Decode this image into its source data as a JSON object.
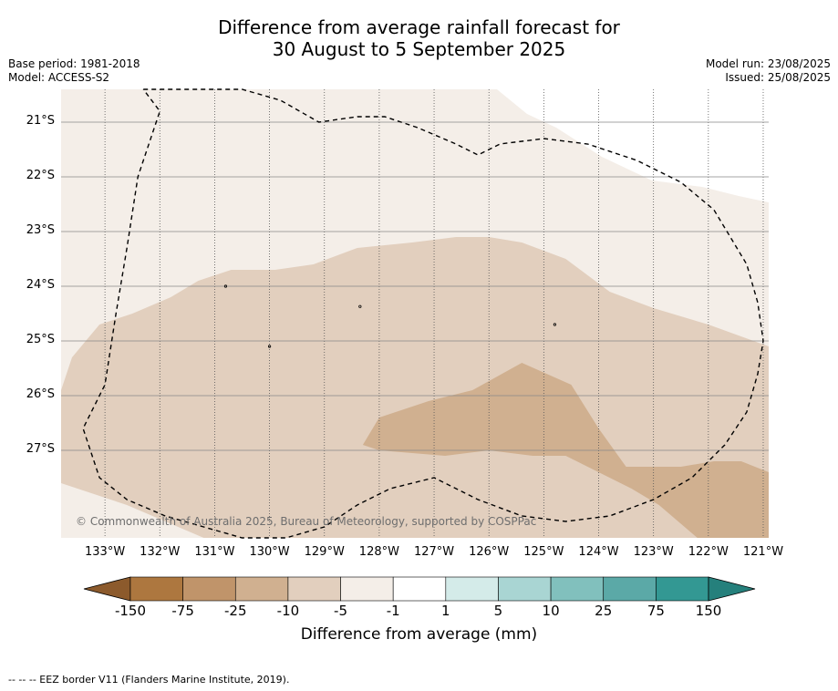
{
  "title": {
    "line1": "Difference from average rainfall forecast for",
    "line2": "30 August to 5 September 2025"
  },
  "meta": {
    "base_period": "Base period: 1981-2018",
    "model": "Model: ACCESS-S2",
    "model_run": "Model run: 23/08/2025",
    "issued": "Issued: 25/08/2025"
  },
  "map": {
    "lon_range": [
      -133.8,
      -120.9
    ],
    "lat_range": [
      -28.6,
      -20.4
    ],
    "lat_labels": [
      {
        "value": -21,
        "label": "21°S"
      },
      {
        "value": -22,
        "label": "22°S"
      },
      {
        "value": -23,
        "label": "23°S"
      },
      {
        "value": -24,
        "label": "24°S"
      },
      {
        "value": -25,
        "label": "25°S"
      },
      {
        "value": -26,
        "label": "26°S"
      },
      {
        "value": -27,
        "label": "27°S"
      }
    ],
    "lon_labels": [
      {
        "value": -133,
        "label": "133°W"
      },
      {
        "value": -132,
        "label": "132°W"
      },
      {
        "value": -131,
        "label": "131°W"
      },
      {
        "value": -130,
        "label": "130°W"
      },
      {
        "value": -129,
        "label": "129°W"
      },
      {
        "value": -128,
        "label": "128°W"
      },
      {
        "value": -127,
        "label": "127°W"
      },
      {
        "value": -126,
        "label": "126°W"
      },
      {
        "value": -125,
        "label": "125°W"
      },
      {
        "value": -124,
        "label": "124°W"
      },
      {
        "value": -123,
        "label": "123°W"
      },
      {
        "value": -122,
        "label": "122°W"
      },
      {
        "value": -121,
        "label": "121°W"
      }
    ],
    "copyright": "© Commonwealth of Australia 2025, Bureau of Meteorology, supported by COSPPac",
    "base_color": "#f4eee8",
    "regions": [
      {
        "range": "-10 to -5",
        "color": "#e2cfbe",
        "outline": [
          [
            -133.8,
            -25.9
          ],
          [
            -133.6,
            -25.3
          ],
          [
            -133.1,
            -24.7
          ],
          [
            -132.5,
            -24.5
          ],
          [
            -131.8,
            -24.2
          ],
          [
            -131.3,
            -23.9
          ],
          [
            -130.7,
            -23.7
          ],
          [
            -129.9,
            -23.7
          ],
          [
            -129.2,
            -23.6
          ],
          [
            -128.4,
            -23.3
          ],
          [
            -127.4,
            -23.2
          ],
          [
            -126.6,
            -23.1
          ],
          [
            -126.0,
            -23.1
          ],
          [
            -125.4,
            -23.2
          ],
          [
            -124.6,
            -23.5
          ],
          [
            -123.8,
            -24.1
          ],
          [
            -123.0,
            -24.4
          ],
          [
            -122.0,
            -24.7
          ],
          [
            -120.9,
            -25.1
          ],
          [
            -120.9,
            -28.6
          ],
          [
            -131.2,
            -28.6
          ],
          [
            -132.6,
            -28.0
          ],
          [
            -133.8,
            -27.6
          ]
        ]
      },
      {
        "range": "-25 to -10",
        "color": "#d0b090",
        "outline": [
          [
            -128.0,
            -26.4
          ],
          [
            -127.1,
            -26.1
          ],
          [
            -126.3,
            -25.9
          ],
          [
            -125.4,
            -25.4
          ],
          [
            -124.5,
            -25.8
          ],
          [
            -124.0,
            -26.6
          ],
          [
            -123.5,
            -27.3
          ],
          [
            -122.5,
            -27.3
          ],
          [
            -121.9,
            -27.2
          ],
          [
            -121.4,
            -27.2
          ],
          [
            -120.9,
            -27.4
          ],
          [
            -120.9,
            -28.6
          ],
          [
            -122.2,
            -28.6
          ],
          [
            -122.9,
            -28.0
          ],
          [
            -123.4,
            -27.7
          ],
          [
            -124.0,
            -27.4
          ],
          [
            -124.6,
            -27.1
          ],
          [
            -125.2,
            -27.1
          ],
          [
            -126.0,
            -27.0
          ],
          [
            -126.8,
            -27.1
          ],
          [
            -128.0,
            -27.0
          ],
          [
            -128.3,
            -26.9
          ],
          [
            -128.0,
            -26.4
          ]
        ]
      }
    ],
    "eez_outline": [
      [
        -132.3,
        -20.4
      ],
      [
        -131.3,
        -20.4
      ],
      [
        -130.5,
        -20.4
      ],
      [
        -129.8,
        -20.6
      ],
      [
        -129.1,
        -21.0
      ],
      [
        -128.4,
        -20.9
      ],
      [
        -127.9,
        -20.9
      ],
      [
        -127.3,
        -21.1
      ],
      [
        -126.6,
        -21.4
      ],
      [
        -126.2,
        -21.6
      ],
      [
        -125.8,
        -21.4
      ],
      [
        -125.0,
        -21.3
      ],
      [
        -124.2,
        -21.4
      ],
      [
        -123.3,
        -21.7
      ],
      [
        -122.5,
        -22.1
      ],
      [
        -121.9,
        -22.6
      ],
      [
        -121.6,
        -23.1
      ],
      [
        -121.3,
        -23.6
      ],
      [
        -121.1,
        -24.3
      ],
      [
        -121.0,
        -25.0
      ],
      [
        -121.1,
        -25.6
      ],
      [
        -121.3,
        -26.3
      ],
      [
        -121.7,
        -26.9
      ],
      [
        -122.3,
        -27.5
      ],
      [
        -123.0,
        -27.9
      ],
      [
        -123.8,
        -28.2
      ],
      [
        -124.6,
        -28.3
      ],
      [
        -125.4,
        -28.2
      ],
      [
        -126.2,
        -27.9
      ],
      [
        -127.0,
        -27.5
      ],
      [
        -127.8,
        -27.7
      ],
      [
        -128.4,
        -28.0
      ],
      [
        -129.0,
        -28.4
      ],
      [
        -129.7,
        -28.6
      ],
      [
        -130.5,
        -28.6
      ],
      [
        -131.2,
        -28.4
      ],
      [
        -131.9,
        -28.2
      ],
      [
        -132.6,
        -27.9
      ],
      [
        -133.1,
        -27.5
      ],
      [
        -133.4,
        -26.6
      ],
      [
        -133.0,
        -25.8
      ],
      [
        -132.8,
        -24.5
      ],
      [
        -132.6,
        -23.3
      ],
      [
        -132.4,
        -22.0
      ],
      [
        -132.0,
        -20.8
      ],
      [
        -132.3,
        -20.4
      ]
    ]
  },
  "legend": {
    "title": "Difference from average (mm)",
    "labels": [
      "-150",
      "-75",
      "-25",
      "-10",
      "-5",
      "-1",
      "1",
      "5",
      "10",
      "25",
      "75",
      "150"
    ],
    "colors": [
      "#8c5a2c",
      "#ad773f",
      "#c0946a",
      "#d0b090",
      "#e2cfbe",
      "#f4eee8",
      "#ffffff",
      "#d4ebe9",
      "#a9d5d3",
      "#81c0bd",
      "#5ba9a7",
      "#339893",
      "#25807c"
    ]
  },
  "footer": "--  --  -- EEZ border V11 (Flanders Marine Institute, 2019)."
}
